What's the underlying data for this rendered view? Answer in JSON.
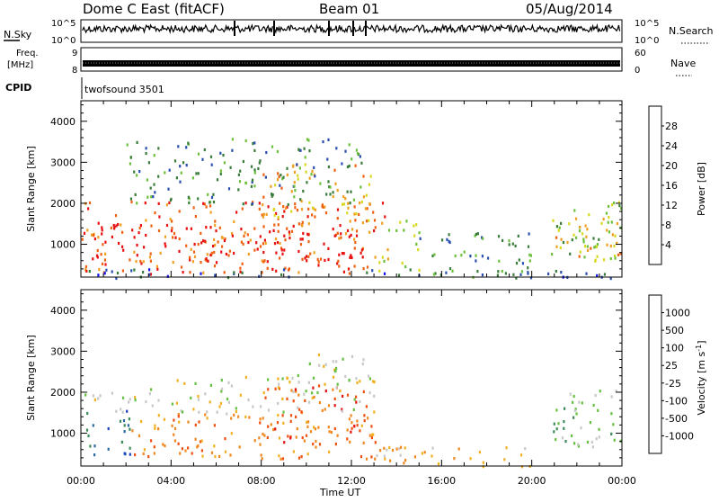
{
  "header": {
    "station": "Dome C East (fitACF)",
    "beam": "Beam 01",
    "date": "05/Aug/2014"
  },
  "strip_panels": {
    "nsky_label": "N.Sky",
    "nsky_ticks": [
      "10^5",
      "10^0"
    ],
    "nsearch_label": "N.Search",
    "nsearch_ticks": [
      "10^5",
      "10^0"
    ],
    "freq_label": "Freq.",
    "freq_unit": "[MHz]",
    "freq_ticks": [
      "9",
      "8"
    ],
    "nave_label": "Nave",
    "nave_ticks": [
      "60",
      "0"
    ],
    "cpid_label": "CPID",
    "cpid_value": "twofsound 3501"
  },
  "chart_data": [
    {
      "type": "heatmap",
      "title": "",
      "xlabel": "Time UT",
      "ylabel": "Slant Range [km]",
      "xlim": [
        0,
        24
      ],
      "ylim": [
        200,
        4500
      ],
      "x_ticks": [
        "00:00",
        "04:00",
        "08:00",
        "12:00",
        "16:00",
        "20:00",
        "00:00"
      ],
      "y_ticks": [
        "1000",
        "2000",
        "3000",
        "4000"
      ],
      "colorbar": {
        "label": "Power [dB]",
        "ticks": [
          "4",
          "8",
          "12",
          "16",
          "20",
          "24",
          "28"
        ],
        "colors": [
          "#1010f0",
          "#2a4fb0",
          "#3a7d3a",
          "#6cc03c",
          "#d8d820",
          "#f0a020",
          "#f06010",
          "#e81010"
        ]
      },
      "regions": [
        {
          "t0": 0.0,
          "t1": 13.5,
          "r0": 300,
          "r1": 2100,
          "level": 6
        },
        {
          "t0": 0.5,
          "t1": 12.6,
          "r0": 600,
          "r1": 1500,
          "level": 7
        },
        {
          "t0": 8.0,
          "t1": 13.0,
          "r0": 1500,
          "r1": 3000,
          "level": 5
        },
        {
          "t0": 2.0,
          "t1": 12.5,
          "r0": 2000,
          "r1": 3600,
          "level": 2
        },
        {
          "t0": 13.2,
          "t1": 15.0,
          "r0": 300,
          "r1": 1600,
          "level": 4
        },
        {
          "t0": 0.0,
          "t1": 24.0,
          "r0": 200,
          "r1": 420,
          "level": 1
        },
        {
          "t0": 15.0,
          "t1": 20.0,
          "r0": 200,
          "r1": 1300,
          "level": 2
        },
        {
          "t0": 20.6,
          "t1": 24.0,
          "r0": 600,
          "r1": 2100,
          "level": 3
        },
        {
          "t0": 21.0,
          "t1": 24.0,
          "r0": 700,
          "r1": 1700,
          "level": 5
        }
      ]
    },
    {
      "type": "heatmap",
      "title": "",
      "xlabel": "Time UT",
      "ylabel": "Slant Range [km]",
      "xlim": [
        0,
        24
      ],
      "ylim": [
        200,
        4500
      ],
      "x_ticks": [
        "00:00",
        "04:00",
        "08:00",
        "12:00",
        "16:00",
        "20:00",
        "00:00"
      ],
      "y_ticks": [
        "1000",
        "2000",
        "3000",
        "4000"
      ],
      "colorbar": {
        "label": "Velocity [m s^-1]",
        "ticks": [
          "1000",
          "500",
          "100",
          "25",
          "-25",
          "-100",
          "-500",
          "-1000"
        ],
        "colors": [
          "#2040c0",
          "#2b6aa0",
          "#3c8a58",
          "#66c040",
          "#c8c8c8",
          "#f0b020",
          "#f08820",
          "#f05010",
          "#e81010"
        ]
      },
      "regions": [
        {
          "t0": 0.0,
          "t1": 2.2,
          "r0": 500,
          "r1": 1600,
          "level": 1
        },
        {
          "t0": 0.0,
          "t1": 3.5,
          "r0": 1500,
          "r1": 2100,
          "level": 4
        },
        {
          "t0": 2.2,
          "t1": 13.5,
          "r0": 400,
          "r1": 1500,
          "level": 6
        },
        {
          "t0": 8.0,
          "t1": 12.8,
          "r0": 700,
          "r1": 2200,
          "level": 7
        },
        {
          "t0": 4.0,
          "t1": 13.0,
          "r0": 1500,
          "r1": 2400,
          "level": 4
        },
        {
          "t0": 9.5,
          "t1": 12.8,
          "r0": 2200,
          "r1": 3000,
          "level": 4
        },
        {
          "t0": 13.0,
          "t1": 20.0,
          "r0": 200,
          "r1": 700,
          "level": 5
        },
        {
          "t0": 20.6,
          "t1": 24.0,
          "r0": 700,
          "r1": 1800,
          "level": 3
        },
        {
          "t0": 21.5,
          "t1": 24.0,
          "r0": 1700,
          "r1": 2100,
          "level": 4
        }
      ]
    }
  ]
}
